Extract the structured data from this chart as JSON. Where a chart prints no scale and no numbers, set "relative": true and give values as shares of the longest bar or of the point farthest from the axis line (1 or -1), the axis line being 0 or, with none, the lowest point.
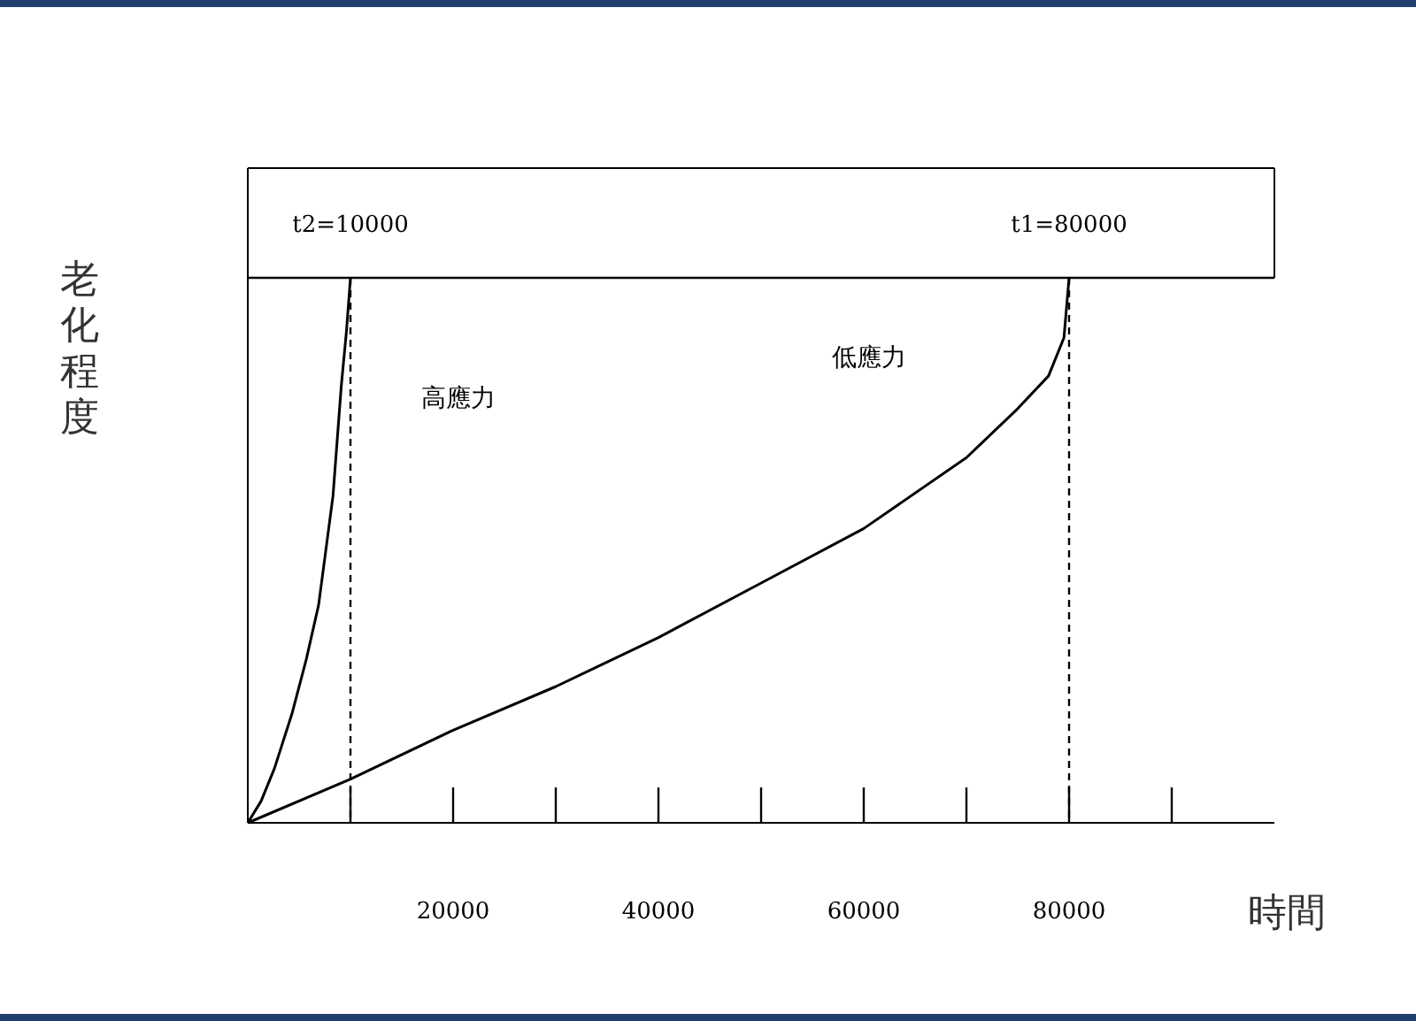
{
  "chart_data": {
    "type": "line",
    "relative": true,
    "xlabel": "時間",
    "ylabel": "老化程度",
    "xlim": [
      0,
      100000
    ],
    "xticks": [
      20000,
      40000,
      60000,
      80000
    ],
    "series": [
      {
        "color": "#000000",
        "x": [
          0,
          1300,
          2600,
          4300,
          5700,
          6900,
          8300,
          9100,
          9600,
          10000
        ],
        "values": [
          0,
          0.04,
          0.1,
          0.2,
          0.3,
          0.4,
          0.6,
          0.8,
          0.9,
          1
        ]
      },
      {
        "color": "#000000",
        "x": [
          0,
          10000,
          20000,
          30000,
          40000,
          50000,
          60000,
          70000,
          75000,
          78000,
          79500,
          80000
        ],
        "values": [
          0,
          0.08,
          0.17,
          0.25,
          0.34,
          0.44,
          0.54,
          0.67,
          0.76,
          0.82,
          0.89,
          1
        ]
      }
    ],
    "ref_lines": [
      {
        "axis": "y",
        "value": 1,
        "line_style": "solid",
        "color": "#000000"
      },
      {
        "axis": "x",
        "value": 10000,
        "label": "t2=10000",
        "line_style": "dashed",
        "color": "#000000"
      },
      {
        "axis": "x",
        "value": 80000,
        "label": "t1=80000",
        "line_style": "dashed",
        "color": "#000000"
      }
    ],
    "annotations": [
      "高應力",
      "低應力"
    ],
    "marker": "none",
    "line_style": "solid"
  }
}
